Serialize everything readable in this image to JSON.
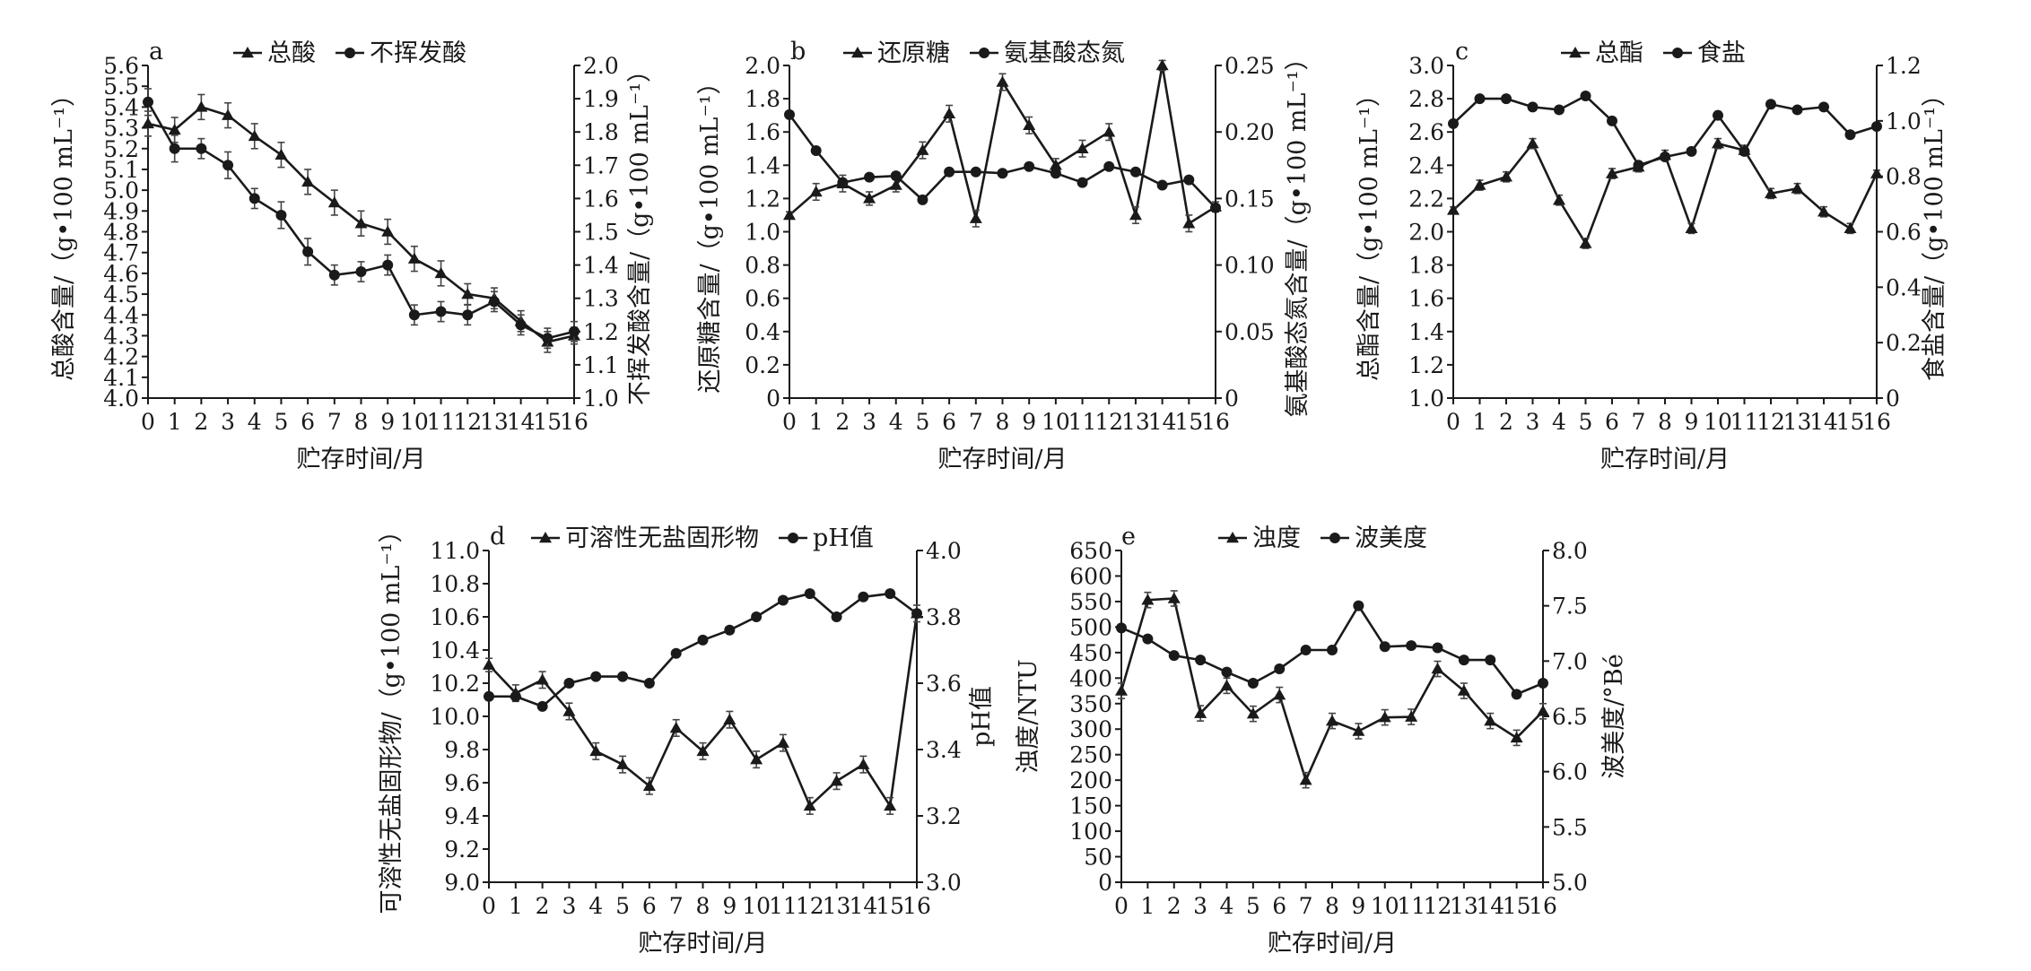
{
  "chart_data": [
    {
      "panel": "a",
      "type": "line",
      "xlabel": "贮存时间/月",
      "x": [
        0,
        1,
        2,
        3,
        4,
        5,
        6,
        7,
        8,
        9,
        10,
        11,
        12,
        13,
        14,
        15,
        16
      ],
      "x_ticks": [
        "0",
        "1",
        "2",
        "3",
        "4",
        "5",
        "6",
        "7",
        "8",
        "9",
        "10",
        "11",
        "12",
        "13",
        "14",
        "15",
        "16"
      ],
      "y_left": {
        "label": "总酸含量/（g•100 mL⁻¹）",
        "range": [
          4.0,
          5.6
        ],
        "ticks": [
          "4.0",
          "4.1",
          "4.2",
          "4.3",
          "4.4",
          "4.5",
          "4.6",
          "4.7",
          "4.8",
          "4.9",
          "5.0",
          "5.1",
          "5.2",
          "5.3",
          "5.4",
          "5.5",
          "5.6"
        ]
      },
      "y_right": {
        "label": "不挥发酸含量/（g•100 mL⁻¹）",
        "range": [
          1.0,
          2.0
        ],
        "ticks": [
          "1.0",
          "1.1",
          "1.2",
          "1.3",
          "1.4",
          "1.5",
          "1.6",
          "1.7",
          "1.8",
          "1.9",
          "2.0"
        ]
      },
      "series": [
        {
          "name": "总酸",
          "axis": "left",
          "marker": "triangle",
          "values": [
            5.32,
            5.29,
            5.4,
            5.36,
            5.26,
            5.17,
            5.04,
            4.94,
            4.84,
            4.8,
            4.67,
            4.6,
            4.5,
            4.48,
            4.37,
            4.27,
            4.3
          ],
          "errors": [
            0.06,
            0.06,
            0.06,
            0.06,
            0.06,
            0.06,
            0.06,
            0.06,
            0.06,
            0.06,
            0.06,
            0.06,
            0.05,
            0.05,
            0.05,
            0.05,
            0.04
          ]
        },
        {
          "name": "不挥发酸",
          "axis": "right",
          "marker": "circle",
          "values": [
            1.89,
            1.75,
            1.75,
            1.7,
            1.6,
            1.55,
            1.44,
            1.37,
            1.38,
            1.4,
            1.25,
            1.26,
            1.25,
            1.29,
            1.22,
            1.18,
            1.2
          ],
          "errors": [
            0.04,
            0.04,
            0.03,
            0.04,
            0.03,
            0.04,
            0.04,
            0.03,
            0.03,
            0.03,
            0.03,
            0.03,
            0.03,
            0.03,
            0.03,
            0.03,
            0.03
          ]
        }
      ]
    },
    {
      "panel": "b",
      "type": "line",
      "xlabel": "贮存时间/月",
      "x": [
        0,
        1,
        2,
        3,
        4,
        5,
        6,
        7,
        8,
        9,
        10,
        11,
        12,
        13,
        14,
        15,
        16
      ],
      "x_ticks": [
        "0",
        "1",
        "2",
        "3",
        "4",
        "5",
        "6",
        "7",
        "8",
        "9",
        "10",
        "11",
        "12",
        "13",
        "14",
        "15",
        "16"
      ],
      "y_left": {
        "label": "还原糖含量/（g•100 mL⁻¹）",
        "range": [
          0,
          2.0
        ],
        "ticks": [
          "0",
          "0.2",
          "0.4",
          "0.6",
          "0.8",
          "1.0",
          "1.2",
          "1.4",
          "1.6",
          "1.8",
          "2.0"
        ]
      },
      "y_right": {
        "label": "氨基酸态氮含量/（g•100 mL⁻¹）",
        "range": [
          0,
          0.25
        ],
        "ticks": [
          "0",
          "0.05",
          "0.10",
          "0.15",
          "0.20",
          "0.25"
        ]
      },
      "series": [
        {
          "name": "还原糖",
          "axis": "left",
          "marker": "triangle",
          "values": [
            1.1,
            1.24,
            1.29,
            1.2,
            1.28,
            1.49,
            1.71,
            1.08,
            1.9,
            1.64,
            1.4,
            1.5,
            1.6,
            1.1,
            2.0,
            1.05,
            1.15
          ],
          "errors": [
            0.02,
            0.05,
            0.05,
            0.04,
            0.04,
            0.05,
            0.05,
            0.05,
            0.05,
            0.05,
            0.04,
            0.05,
            0.05,
            0.05,
            0.03,
            0.05,
            0.03
          ]
        },
        {
          "name": "氨基酸态氮",
          "axis": "right",
          "marker": "circle",
          "values": [
            0.213,
            0.186,
            0.162,
            0.166,
            0.167,
            0.149,
            0.17,
            0.17,
            0.169,
            0.174,
            0.169,
            0.162,
            0.174,
            0.17,
            0.16,
            0.164,
            0.143
          ],
          "errors": [
            0.002,
            0.002,
            0.002,
            0.002,
            0.002,
            0.002,
            0.002,
            0.002,
            0.002,
            0.002,
            0.002,
            0.002,
            0.002,
            0.002,
            0.002,
            0.002,
            0.002
          ]
        }
      ]
    },
    {
      "panel": "c",
      "type": "line",
      "xlabel": "贮存时间/月",
      "x": [
        0,
        1,
        2,
        3,
        4,
        5,
        6,
        7,
        8,
        9,
        10,
        11,
        12,
        13,
        14,
        15,
        16
      ],
      "x_ticks": [
        "0",
        "1",
        "2",
        "3",
        "4",
        "5",
        "6",
        "7",
        "8",
        "9",
        "10",
        "11",
        "12",
        "13",
        "14",
        "15",
        "16"
      ],
      "y_left": {
        "label": "总酯含量/（g•100 mL⁻¹）",
        "range": [
          1.0,
          3.0
        ],
        "ticks": [
          "1.0",
          "1.2",
          "1.4",
          "1.6",
          "1.8",
          "2.0",
          "2.2",
          "2.4",
          "2.6",
          "2.8",
          "3.0"
        ]
      },
      "y_right": {
        "label": "食盐含量/（g•100 mL⁻¹）",
        "range": [
          0,
          1.2
        ],
        "ticks": [
          "0",
          "0.2",
          "0.4",
          "0.6",
          "0.8",
          "1.0",
          "1.2"
        ]
      },
      "series": [
        {
          "name": "总酯",
          "axis": "left",
          "marker": "triangle",
          "values": [
            2.13,
            2.28,
            2.33,
            2.53,
            2.19,
            1.93,
            2.35,
            2.39,
            2.46,
            2.02,
            2.53,
            2.49,
            2.23,
            2.26,
            2.12,
            2.02,
            2.35
          ],
          "errors": [
            0.02,
            0.03,
            0.03,
            0.03,
            0.03,
            0.03,
            0.03,
            0.03,
            0.03,
            0.03,
            0.03,
            0.03,
            0.03,
            0.03,
            0.03,
            0.03,
            0.02
          ]
        },
        {
          "name": "食盐",
          "axis": "right",
          "marker": "circle",
          "values": [
            0.99,
            1.08,
            1.08,
            1.05,
            1.04,
            1.09,
            1.0,
            0.84,
            0.87,
            0.89,
            1.02,
            0.89,
            1.06,
            1.04,
            1.05,
            0.95,
            0.98
          ],
          "errors": [
            0.01,
            0.01,
            0.01,
            0.01,
            0.01,
            0.01,
            0.01,
            0.01,
            0.01,
            0.01,
            0.01,
            0.01,
            0.01,
            0.01,
            0.01,
            0.01,
            0.01
          ]
        }
      ]
    },
    {
      "panel": "d",
      "type": "line",
      "xlabel": "贮存时间/月",
      "x": [
        0,
        1,
        2,
        3,
        4,
        5,
        6,
        7,
        8,
        9,
        10,
        11,
        12,
        13,
        14,
        15,
        16
      ],
      "x_ticks": [
        "0",
        "1",
        "2",
        "3",
        "4",
        "5",
        "6",
        "7",
        "8",
        "9",
        "10",
        "11",
        "12",
        "13",
        "14",
        "15",
        "16"
      ],
      "y_left": {
        "label": "可溶性无盐固形物/（g•100 mL⁻¹）",
        "range": [
          9.0,
          11.0
        ],
        "ticks": [
          "9.0",
          "9.2",
          "9.4",
          "9.6",
          "9.8",
          "10.0",
          "10.2",
          "10.4",
          "10.6",
          "10.8",
          "11.0"
        ]
      },
      "y_right": {
        "label": "pH值",
        "range": [
          3.0,
          4.0
        ],
        "ticks": [
          "3.0",
          "3.2",
          "3.4",
          "3.6",
          "3.8",
          "4.0"
        ]
      },
      "series": [
        {
          "name": "可溶性无盐固形物",
          "axis": "left",
          "marker": "triangle",
          "values": [
            10.31,
            10.14,
            10.22,
            10.03,
            9.79,
            9.71,
            9.58,
            9.93,
            9.79,
            9.98,
            9.74,
            9.84,
            9.46,
            9.61,
            9.71,
            9.46,
            10.62
          ],
          "errors": [
            0.04,
            0.05,
            0.05,
            0.05,
            0.05,
            0.05,
            0.05,
            0.05,
            0.05,
            0.05,
            0.05,
            0.05,
            0.05,
            0.05,
            0.05,
            0.05,
            0.05
          ]
        },
        {
          "name": "pH值",
          "axis": "right",
          "marker": "circle",
          "values": [
            3.56,
            3.56,
            3.53,
            3.6,
            3.62,
            3.62,
            3.6,
            3.69,
            3.73,
            3.76,
            3.8,
            3.85,
            3.87,
            3.8,
            3.86,
            3.87,
            3.81
          ],
          "errors": [
            0.01,
            0.01,
            0.01,
            0.01,
            0.01,
            0.01,
            0.01,
            0.01,
            0.01,
            0.01,
            0.01,
            0.01,
            0.01,
            0.01,
            0.01,
            0.01,
            0.01
          ]
        }
      ]
    },
    {
      "panel": "e",
      "type": "line",
      "xlabel": "贮存时间/月",
      "x": [
        0,
        1,
        2,
        3,
        4,
        5,
        6,
        7,
        8,
        9,
        10,
        11,
        12,
        13,
        14,
        15,
        16
      ],
      "x_ticks": [
        "0",
        "1",
        "2",
        "3",
        "4",
        "5",
        "6",
        "7",
        "8",
        "9",
        "10",
        "11",
        "12",
        "13",
        "14",
        "15",
        "16"
      ],
      "y_left": {
        "label": "浊度/NTU",
        "range": [
          0,
          650
        ],
        "ticks": [
          "0",
          "50",
          "100",
          "150",
          "200",
          "250",
          "300",
          "350",
          "400",
          "450",
          "500",
          "550",
          "600",
          "650"
        ]
      },
      "y_right": {
        "label": "波美度/°Bé",
        "range": [
          5.0,
          8.0
        ],
        "ticks": [
          "5.0",
          "5.5",
          "6.0",
          "6.5",
          "7.0",
          "7.5",
          "8.0"
        ]
      },
      "series": [
        {
          "name": "浊度",
          "axis": "left",
          "marker": "triangle",
          "values": [
            375,
            553,
            556,
            331,
            385,
            330,
            367,
            200,
            316,
            296,
            323,
            324,
            418,
            375,
            316,
            283,
            335
          ],
          "errors": [
            15,
            15,
            15,
            15,
            15,
            15,
            15,
            15,
            15,
            15,
            15,
            15,
            15,
            15,
            15,
            15,
            15
          ]
        },
        {
          "name": "波美度",
          "axis": "right",
          "marker": "circle",
          "values": [
            7.3,
            7.2,
            7.05,
            7.01,
            6.9,
            6.8,
            6.93,
            7.1,
            7.1,
            7.5,
            7.13,
            7.14,
            7.12,
            7.01,
            7.01,
            6.7,
            6.8
          ],
          "errors": [
            0.03,
            0.03,
            0.03,
            0.03,
            0.03,
            0.03,
            0.03,
            0.03,
            0.03,
            0.03,
            0.03,
            0.03,
            0.03,
            0.03,
            0.03,
            0.03,
            0.03
          ]
        }
      ]
    }
  ]
}
